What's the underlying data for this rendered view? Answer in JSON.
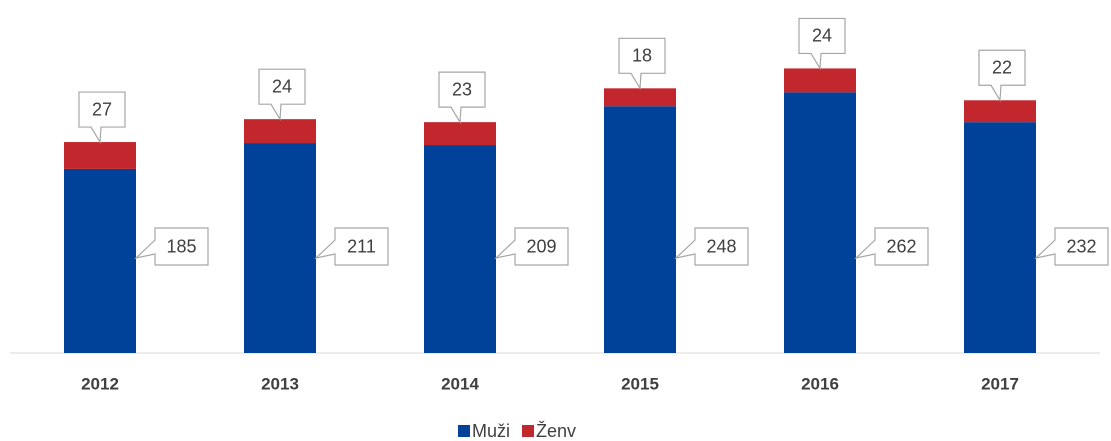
{
  "chart_data": {
    "type": "stacked_bar",
    "categories": [
      "2012",
      "2013",
      "2014",
      "2015",
      "2016",
      "2017"
    ],
    "series": [
      {
        "name": "Muži",
        "color": "#00419a",
        "values": [
          185,
          211,
          209,
          248,
          262,
          232
        ]
      },
      {
        "name": "Ženv",
        "color": "#c1272d",
        "values": [
          27,
          24,
          23,
          18,
          24,
          22
        ]
      }
    ],
    "legend": "bottom"
  }
}
